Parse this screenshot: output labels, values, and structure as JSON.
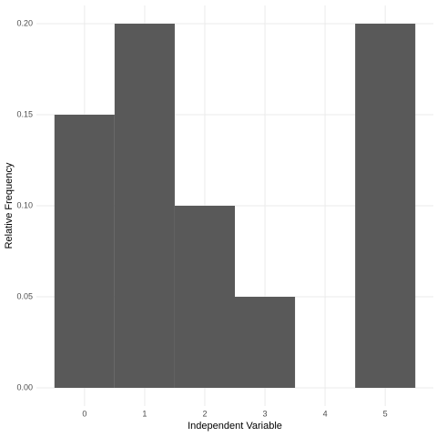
{
  "chart_data": {
    "type": "bar",
    "x_label": "Independent Variable",
    "y_label": "Relative Frequency",
    "x": [
      0,
      1,
      2,
      3,
      4,
      5
    ],
    "values": [
      0.15,
      0.2,
      0.1,
      0.05,
      0,
      0.2
    ],
    "color": "#595959",
    "xlim": [
      -0.8,
      5.8
    ],
    "xticks": [
      0,
      1,
      2,
      3,
      4,
      5
    ],
    "ylim": [
      -0.01,
      0.21
    ],
    "yticks": [
      {
        "value": 0,
        "label": "0.00"
      },
      {
        "value": 0.05,
        "label": "0.05"
      },
      {
        "value": 0.1,
        "label": "0.10"
      },
      {
        "value": 0.15,
        "label": "0.15"
      },
      {
        "value": 0.2,
        "label": "0.20"
      }
    ],
    "grid": true
  }
}
